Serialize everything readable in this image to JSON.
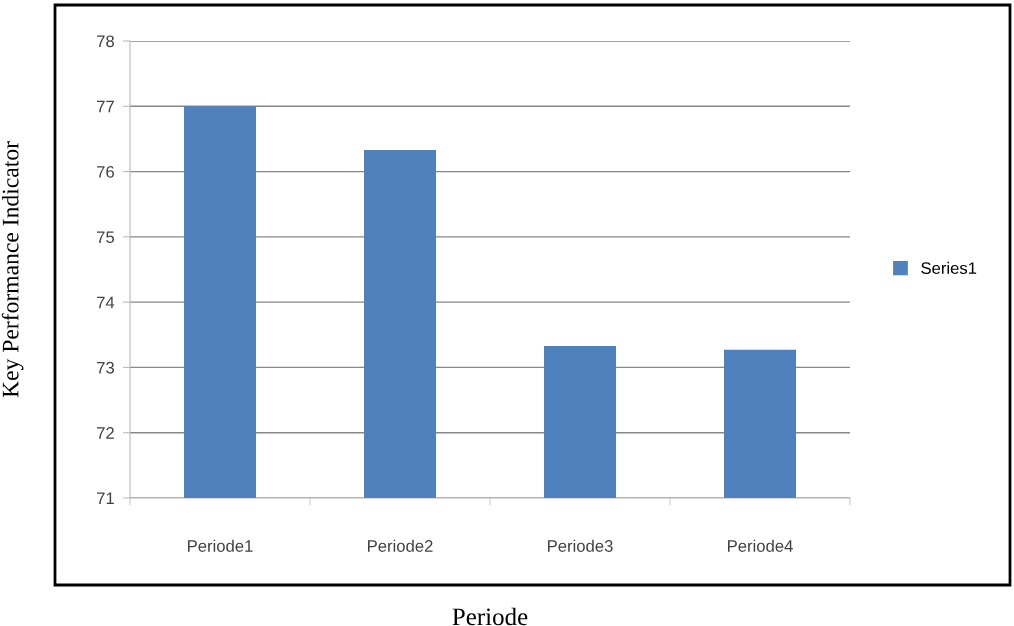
{
  "chart_data": {
    "type": "bar",
    "xlabel": "Periode",
    "ylabel": "Key Performance Indicator",
    "categories": [
      "Periode1",
      "Periode2",
      "Periode3",
      "Periode4"
    ],
    "series": [
      {
        "name": "Series1",
        "color": "#4f81bd",
        "values": [
          77.0,
          76.33,
          73.33,
          73.27
        ]
      }
    ],
    "ylim": [
      71,
      78
    ],
    "yticks": [
      71,
      72,
      73,
      74,
      75,
      76,
      77,
      78
    ],
    "grid": "y",
    "legend": "right"
  }
}
